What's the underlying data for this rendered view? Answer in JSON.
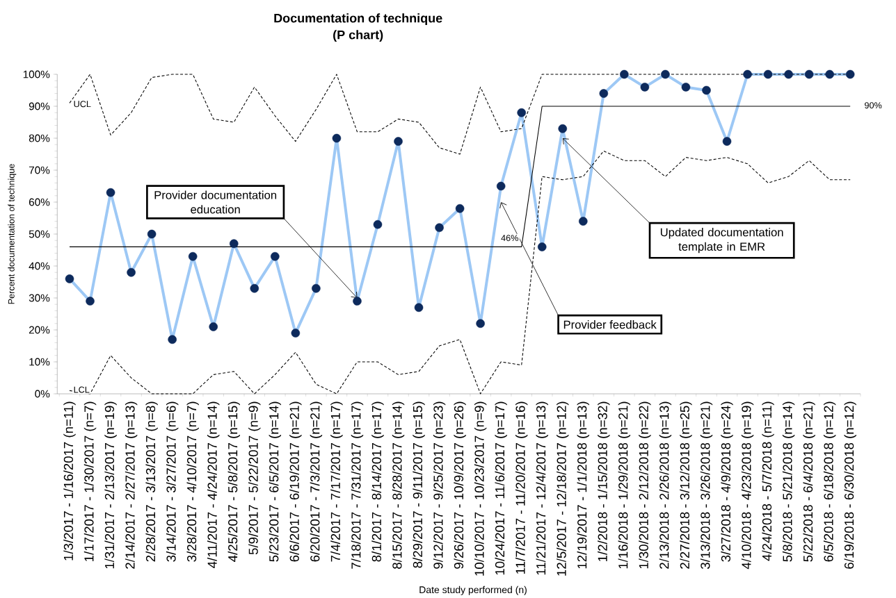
{
  "chart_data": {
    "type": "line",
    "title": "Documentation of technique",
    "subtitle": "(P chart)",
    "xlabel": "Date study performed (n)",
    "ylabel": "Percent documentation of technique",
    "categories": [
      "1/3/2017 - 1/16/2017 (n=11)",
      "1/17/2017 - 1/30/2017 (n=7)",
      "1/31/2017 - 2/13/2017 (n=19)",
      "2/14/2017 - 2/27/2017 (n=13)",
      "2/28/2017 - 3/13/2017  (n=8)",
      "3/14/2017 - 3/27/2017 (n=6)",
      "3/28/2017 - 4/10/2017 (n=7)",
      "4/11/2017 - 4/24/2017 (n=14)",
      "4/25/2017 - 5/8/2017 (n=15)",
      "5/9/2017 - 5/22/2017 (n=9)",
      "5/23/2017 - 6/5/2017 (n=14)",
      "6/6/2017 - 6/19/2017 (n=21)",
      "6/20/2017 - 7/3/2017 (n=21)",
      "7/4/2017 - 7/17/2017 (n=17)",
      "7/18/2017 - 7/31/2017 (n=17)",
      "8/1/2017 - 8/14/2017 (n=17)",
      "8/15/2017 - 8/28/2017 (n=14)",
      "8/29/2017 - 9/11/2017 (n=15)",
      "9/12/2017 - 9/25/2017 (n=23)",
      "9/26/2017 - 10/9/2017 (n=26)",
      "10/10/2017 - 10/23/2017 (n=9)",
      "10/24/2017 - 11/6/2017 (n=17)",
      "11/7/2017 - 11/20/2017 (n=16)",
      "11/21/2017 - 12/4/2017 (n=13)",
      "12/5/2017 - 12/18/2017 (n=12)",
      "12/19/2017 - 1/1/2018 (n=13)",
      "1/2/2018 - 1/15/2018 (n=32)",
      "1/16/2018 - 1/29/2018 (n=21)",
      "1/30/2018 - 2/12/2018 (n=22)",
      "2/13/2018 - 2/26/2018 (n=13)",
      "2/27/2018 - 3/12/2018 (n=25)",
      "3/13/2018 - 3/26/2018 (n=21)",
      "3/27/2018 - 4/9/2018 (n=24)",
      "4/10/2018 - 4/23/2018 (n=19)",
      "4/24/2018 - 5/7/2018 (n=11)",
      "5/8/2018 - 5/21/2018 (n=14)",
      "5/22/2018 - 6/4/2018 (n=21)",
      "6/5/2018 - 6/18/2018 (n=12)",
      "6/19/2018 - 6/30/2018 (n=12)"
    ],
    "series": [
      {
        "type": "line",
        "color": "#9dc8f5",
        "marker": "circle",
        "line_style": "solid",
        "colors": [
          "#0d2a5c",
          "#0d2a5c",
          "#0d2a5c",
          "#0d2a5c",
          "#0d2a5c",
          "#0d2a5c",
          "#0d2a5c",
          "#0d2a5c",
          "#0d2a5c",
          "#0d2a5c",
          "#0d2a5c",
          "#0d2a5c",
          "#0d2a5c",
          "#0d2a5c",
          "#0d2a5c",
          "#0d2a5c",
          "#0d2a5c",
          "#0d2a5c",
          "#0d2a5c",
          "#0d2a5c",
          "#0d2a5c",
          "#0d2a5c",
          "#0d2a5c",
          "#0d2a5c",
          "#0d2a5c",
          "#0d2a5c",
          "#0d2a5c",
          "#0d2a5c",
          "#0d2a5c",
          "#0d2a5c",
          "#0d2a5c",
          "#0d2a5c",
          "#0d2a5c",
          "#0d2a5c",
          "#0d2a5c",
          "#0d2a5c",
          "#0d2a5c",
          "#0d2a5c",
          "#0d2a5c"
        ],
        "values": [
          36,
          29,
          63,
          38,
          50,
          17,
          43,
          21,
          47,
          33,
          43,
          19,
          33,
          80,
          29,
          53,
          79,
          27,
          52,
          58,
          22,
          65,
          88,
          46,
          83,
          54,
          94,
          100,
          96,
          100,
          96,
          95,
          79,
          100,
          100,
          100,
          100,
          100,
          100
        ]
      },
      {
        "type": "line",
        "color": "#000000",
        "marker": "none",
        "line_style": "dashed",
        "values": [
          91,
          100,
          81,
          88,
          99,
          100,
          100,
          86,
          85,
          96,
          87,
          79,
          89,
          100,
          82,
          82,
          86,
          85,
          77,
          75,
          96,
          82,
          83,
          100,
          100,
          100,
          100,
          100,
          100,
          100,
          100,
          100,
          100,
          100,
          100,
          100,
          100,
          100,
          100
        ]
      },
      {
        "type": "line",
        "color": "#000000",
        "marker": "none",
        "line_style": "dashed",
        "values": [
          1,
          0,
          12,
          5,
          0,
          0,
          0,
          6,
          7,
          0,
          6,
          13,
          3,
          0,
          10,
          10,
          6,
          7,
          15,
          17,
          0,
          10,
          9,
          68,
          67,
          68,
          76,
          73,
          73,
          68,
          74,
          73,
          74,
          72,
          66,
          68,
          73,
          67,
          67
        ]
      },
      {
        "type": "line",
        "color": "#000000",
        "marker": "none",
        "line_style": "solid",
        "values": [
          46,
          46,
          46,
          46,
          46,
          46,
          46,
          46,
          46,
          46,
          46,
          46,
          46,
          46,
          46,
          46,
          46,
          46,
          46,
          46,
          46,
          46,
          46,
          90,
          90,
          90,
          90,
          90,
          90,
          90,
          90,
          90,
          90,
          90,
          90,
          90,
          90,
          90,
          90
        ]
      }
    ],
    "ylim": [
      0,
      100
    ],
    "yticks": [
      {
        "value": 0,
        "label": "0%"
      },
      {
        "value": 10,
        "label": "10%"
      },
      {
        "value": 20,
        "label": "20%"
      },
      {
        "value": 30,
        "label": "30%"
      },
      {
        "value": 40,
        "label": "40%"
      },
      {
        "value": 50,
        "label": "50%"
      },
      {
        "value": 60,
        "label": "60%"
      },
      {
        "value": 70,
        "label": "70%"
      },
      {
        "value": 80,
        "label": "80%"
      },
      {
        "value": 90,
        "label": "90%"
      },
      {
        "value": 100,
        "label": "100%"
      }
    ],
    "annotations": [
      {
        "text": "Provider documentation education",
        "x": "7/18/2017 - 7/31/2017 (n=17)",
        "y": 30
      },
      {
        "text": "Provider feedback",
        "x": "10/24/2017 - 11/6/2017 (n=17)",
        "y": 60
      },
      {
        "text": "Updated documentation template in EMR",
        "x": "12/5/2017 - 12/18/2017 (n=12)",
        "y": 80
      },
      {
        "text": "46%",
        "x": "11/7/2017 - 11/20/2017 (n=16)",
        "y": 46
      },
      {
        "text": "90%",
        "x": "6/19/2018 - 6/30/2018 (n=12)",
        "y": 90
      },
      {
        "text": "UCL",
        "x": "1/3/2017 - 1/16/2017 (n=11)",
        "y": 91
      },
      {
        "text": "LCL",
        "x": "1/3/2017 - 1/16/2017 (n=11)",
        "y": 1
      }
    ]
  }
}
